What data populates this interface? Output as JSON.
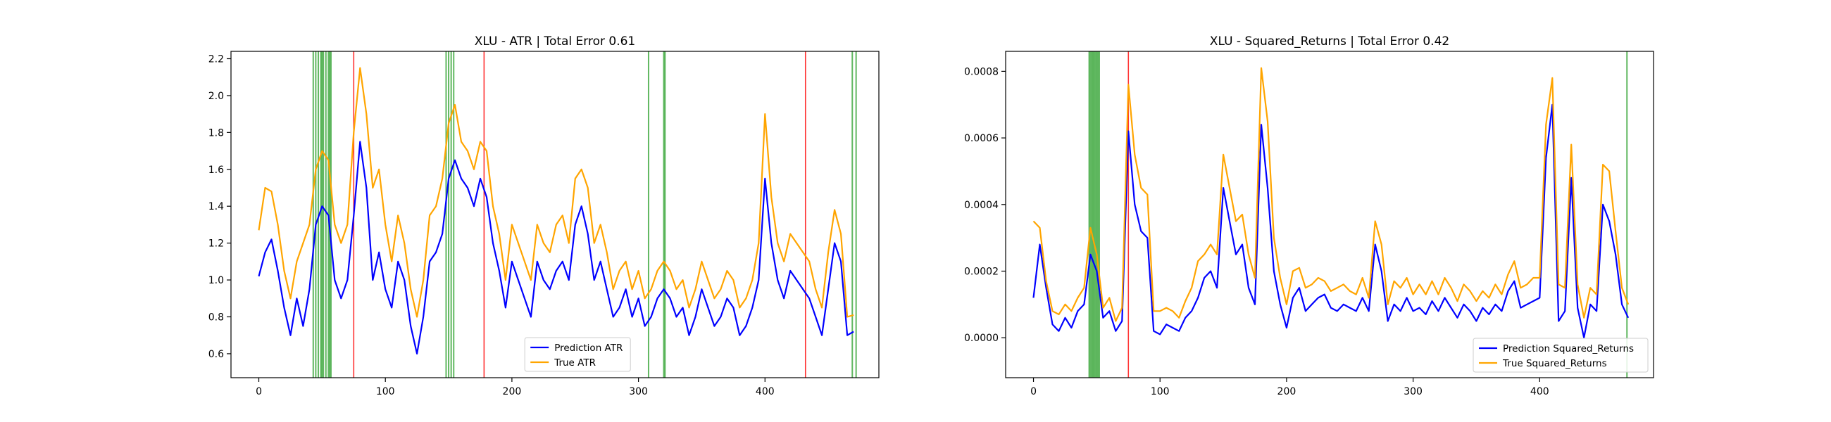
{
  "chart_data": [
    {
      "type": "line",
      "title": "XLU - ATR | Total Error 0.61",
      "xlabel": "",
      "ylabel": "",
      "xlim": [
        -22,
        490
      ],
      "ylim": [
        0.47,
        2.24
      ],
      "xticks": [
        0,
        100,
        200,
        300,
        400
      ],
      "xtick_labels": [
        "0",
        "100",
        "200",
        "300",
        "400"
      ],
      "yticks": [
        0.6,
        0.8,
        1.0,
        1.2,
        1.4,
        1.6,
        1.8,
        2.0,
        2.2
      ],
      "ytick_labels": [
        "0.6",
        "0.8",
        "1.0",
        "1.2",
        "1.4",
        "1.6",
        "1.8",
        "2.0",
        "2.2"
      ],
      "grid": false,
      "legend_position": "lower-center",
      "vlines_green": [
        43,
        45,
        47,
        49,
        50,
        51,
        53,
        55,
        56,
        57,
        148,
        150,
        152,
        154,
        308,
        320,
        321,
        469,
        472
      ],
      "vlines_red": [
        75,
        178,
        432
      ],
      "series": [
        {
          "name": "Prediction ATR",
          "color": "#0000ff",
          "x": [
            0,
            5,
            10,
            15,
            20,
            25,
            30,
            35,
            40,
            45,
            50,
            55,
            60,
            65,
            70,
            75,
            80,
            85,
            90,
            95,
            100,
            105,
            110,
            115,
            120,
            125,
            130,
            135,
            140,
            145,
            150,
            155,
            160,
            165,
            170,
            175,
            180,
            185,
            190,
            195,
            200,
            205,
            210,
            215,
            220,
            225,
            230,
            235,
            240,
            245,
            250,
            255,
            260,
            265,
            270,
            275,
            280,
            285,
            290,
            295,
            300,
            305,
            310,
            315,
            320,
            325,
            330,
            335,
            340,
            345,
            350,
            355,
            360,
            365,
            370,
            375,
            380,
            385,
            390,
            395,
            400,
            405,
            410,
            415,
            420,
            425,
            430,
            435,
            440,
            445,
            450,
            455,
            460,
            465,
            470
          ],
          "values": [
            1.02,
            1.15,
            1.22,
            1.05,
            0.85,
            0.7,
            0.9,
            0.75,
            0.95,
            1.3,
            1.4,
            1.35,
            1.0,
            0.9,
            1.0,
            1.35,
            1.75,
            1.5,
            1.0,
            1.15,
            0.95,
            0.85,
            1.1,
            1.0,
            0.75,
            0.6,
            0.8,
            1.1,
            1.15,
            1.25,
            1.55,
            1.65,
            1.55,
            1.5,
            1.4,
            1.55,
            1.45,
            1.2,
            1.05,
            0.85,
            1.1,
            1.0,
            0.9,
            0.8,
            1.1,
            1.0,
            0.95,
            1.05,
            1.1,
            1.0,
            1.3,
            1.4,
            1.25,
            1.0,
            1.1,
            0.95,
            0.8,
            0.85,
            0.95,
            0.8,
            0.9,
            0.75,
            0.8,
            0.9,
            0.95,
            0.9,
            0.8,
            0.85,
            0.7,
            0.8,
            0.95,
            0.85,
            0.75,
            0.8,
            0.9,
            0.85,
            0.7,
            0.75,
            0.85,
            1.0,
            1.55,
            1.2,
            1.0,
            0.9,
            1.05,
            1.0,
            0.95,
            0.9,
            0.8,
            0.7,
            0.95,
            1.2,
            1.1,
            0.7,
            0.72
          ]
        },
        {
          "name": "True ATR",
          "color": "#ffa500",
          "x": [
            0,
            5,
            10,
            15,
            20,
            25,
            30,
            35,
            40,
            45,
            50,
            55,
            60,
            65,
            70,
            75,
            80,
            85,
            90,
            95,
            100,
            105,
            110,
            115,
            120,
            125,
            130,
            135,
            140,
            145,
            150,
            155,
            160,
            165,
            170,
            175,
            180,
            185,
            190,
            195,
            200,
            205,
            210,
            215,
            220,
            225,
            230,
            235,
            240,
            245,
            250,
            255,
            260,
            265,
            270,
            275,
            280,
            285,
            290,
            295,
            300,
            305,
            310,
            315,
            320,
            325,
            330,
            335,
            340,
            345,
            350,
            355,
            360,
            365,
            370,
            375,
            380,
            385,
            390,
            395,
            400,
            405,
            410,
            415,
            420,
            425,
            430,
            435,
            440,
            445,
            450,
            455,
            460,
            465,
            470
          ],
          "values": [
            1.27,
            1.5,
            1.48,
            1.3,
            1.05,
            0.9,
            1.1,
            1.2,
            1.3,
            1.6,
            1.7,
            1.65,
            1.3,
            1.2,
            1.3,
            1.8,
            2.15,
            1.9,
            1.5,
            1.6,
            1.3,
            1.1,
            1.35,
            1.2,
            0.95,
            0.8,
            1.0,
            1.35,
            1.4,
            1.55,
            1.85,
            1.95,
            1.75,
            1.7,
            1.6,
            1.75,
            1.7,
            1.4,
            1.25,
            1.0,
            1.3,
            1.2,
            1.1,
            1.0,
            1.3,
            1.2,
            1.15,
            1.3,
            1.35,
            1.2,
            1.55,
            1.6,
            1.5,
            1.2,
            1.3,
            1.15,
            0.95,
            1.05,
            1.1,
            0.95,
            1.05,
            0.9,
            0.95,
            1.05,
            1.1,
            1.05,
            0.95,
            1.0,
            0.85,
            0.95,
            1.1,
            1.0,
            0.9,
            0.95,
            1.05,
            1.0,
            0.85,
            0.9,
            1.0,
            1.2,
            1.9,
            1.45,
            1.2,
            1.1,
            1.25,
            1.2,
            1.15,
            1.1,
            0.95,
            0.85,
            1.15,
            1.38,
            1.25,
            0.8,
            0.81
          ]
        }
      ]
    },
    {
      "type": "line",
      "title": "XLU - Squared_Returns | Total Error 0.42",
      "xlabel": "",
      "ylabel": "",
      "xlim": [
        -22,
        490
      ],
      "ylim": [
        -0.00012,
        0.00086
      ],
      "xticks": [
        0,
        100,
        200,
        300,
        400
      ],
      "xtick_labels": [
        "0",
        "100",
        "200",
        "300",
        "400"
      ],
      "yticks": [
        0.0,
        0.0002,
        0.0004,
        0.0006,
        0.0008
      ],
      "ytick_labels": [
        "0.0000",
        "0.0002",
        "0.0004",
        "0.0006",
        "0.0008"
      ],
      "grid": false,
      "legend_position": "lower-right",
      "vlines_green": [
        44,
        45,
        46,
        47,
        48,
        49,
        50,
        51,
        52,
        469
      ],
      "vlines_red": [
        75
      ],
      "series": [
        {
          "name": "Prediction Squared_Returns",
          "color": "#0000ff",
          "x": [
            0,
            5,
            10,
            15,
            20,
            25,
            30,
            35,
            40,
            45,
            50,
            55,
            60,
            65,
            70,
            75,
            80,
            85,
            90,
            95,
            100,
            105,
            110,
            115,
            120,
            125,
            130,
            135,
            140,
            145,
            150,
            155,
            160,
            165,
            170,
            175,
            180,
            185,
            190,
            195,
            200,
            205,
            210,
            215,
            220,
            225,
            230,
            235,
            240,
            245,
            250,
            255,
            260,
            265,
            270,
            275,
            280,
            285,
            290,
            295,
            300,
            305,
            310,
            315,
            320,
            325,
            330,
            335,
            340,
            345,
            350,
            355,
            360,
            365,
            370,
            375,
            380,
            385,
            390,
            395,
            400,
            405,
            410,
            415,
            420,
            425,
            430,
            435,
            440,
            445,
            450,
            455,
            460,
            465,
            470
          ],
          "values": [
            0.00012,
            0.00028,
            0.00015,
            4e-05,
            2e-05,
            6e-05,
            3e-05,
            8e-05,
            0.0001,
            0.00025,
            0.0002,
            6e-05,
            8e-05,
            2e-05,
            5e-05,
            0.00062,
            0.0004,
            0.00032,
            0.0003,
            2e-05,
            1e-05,
            4e-05,
            3e-05,
            2e-05,
            6e-05,
            8e-05,
            0.00012,
            0.00018,
            0.0002,
            0.00015,
            0.00045,
            0.00035,
            0.00025,
            0.00028,
            0.00015,
            0.0001,
            0.00064,
            0.00045,
            0.0002,
            0.0001,
            3e-05,
            0.00012,
            0.00015,
            8e-05,
            0.0001,
            0.00012,
            0.00013,
            9e-05,
            8e-05,
            0.0001,
            9e-05,
            8e-05,
            0.00012,
            8e-05,
            0.00028,
            0.0002,
            5e-05,
            0.0001,
            8e-05,
            0.00012,
            8e-05,
            9e-05,
            7e-05,
            0.00011,
            8e-05,
            0.00012,
            9e-05,
            6e-05,
            0.0001,
            8e-05,
            5e-05,
            9e-05,
            7e-05,
            0.0001,
            8e-05,
            0.00014,
            0.00017,
            9e-05,
            0.0001,
            0.00011,
            0.00012,
            0.00054,
            0.0007,
            5e-05,
            8e-05,
            0.00048,
            9e-05,
            0.0,
            0.0001,
            8e-05,
            0.0004,
            0.00035,
            0.00025,
            0.0001,
            6e-05
          ]
        },
        {
          "name": "True Squared_Returns",
          "color": "#ffa500",
          "x": [
            0,
            5,
            10,
            15,
            20,
            25,
            30,
            35,
            40,
            45,
            50,
            55,
            60,
            65,
            70,
            75,
            80,
            85,
            90,
            95,
            100,
            105,
            110,
            115,
            120,
            125,
            130,
            135,
            140,
            145,
            150,
            155,
            160,
            165,
            170,
            175,
            180,
            185,
            190,
            195,
            200,
            205,
            210,
            215,
            220,
            225,
            230,
            235,
            240,
            245,
            250,
            255,
            260,
            265,
            270,
            275,
            280,
            285,
            290,
            295,
            300,
            305,
            310,
            315,
            320,
            325,
            330,
            335,
            340,
            345,
            350,
            355,
            360,
            365,
            370,
            375,
            380,
            385,
            390,
            395,
            400,
            405,
            410,
            415,
            420,
            425,
            430,
            435,
            440,
            445,
            450,
            455,
            460,
            465,
            470
          ],
          "values": [
            0.00035,
            0.00033,
            0.00017,
            8e-05,
            7e-05,
            0.0001,
            8e-05,
            0.00012,
            0.00015,
            0.00033,
            0.00025,
            9e-05,
            0.00012,
            5e-05,
            9e-05,
            0.00076,
            0.00055,
            0.00045,
            0.00043,
            8e-05,
            8e-05,
            9e-05,
            8e-05,
            6e-05,
            0.00011,
            0.00015,
            0.00023,
            0.00025,
            0.00028,
            0.00025,
            0.00055,
            0.00045,
            0.00035,
            0.00037,
            0.00025,
            0.00018,
            0.00081,
            0.00065,
            0.0003,
            0.00018,
            0.0001,
            0.0002,
            0.00021,
            0.00015,
            0.00016,
            0.00018,
            0.00017,
            0.00014,
            0.00015,
            0.00016,
            0.00014,
            0.00013,
            0.00018,
            0.00012,
            0.00035,
            0.00028,
            0.0001,
            0.00017,
            0.00015,
            0.00018,
            0.00013,
            0.00016,
            0.00013,
            0.00017,
            0.00013,
            0.00018,
            0.00015,
            0.00011,
            0.00016,
            0.00014,
            0.00011,
            0.00014,
            0.00012,
            0.00016,
            0.00013,
            0.00019,
            0.00023,
            0.00015,
            0.00016,
            0.00018,
            0.00018,
            0.00064,
            0.00078,
            0.00016,
            0.00015,
            0.00058,
            0.00016,
            6e-05,
            0.00015,
            0.00013,
            0.00052,
            0.0005,
            0.00032,
            0.00015,
            0.0001
          ]
        }
      ]
    }
  ]
}
